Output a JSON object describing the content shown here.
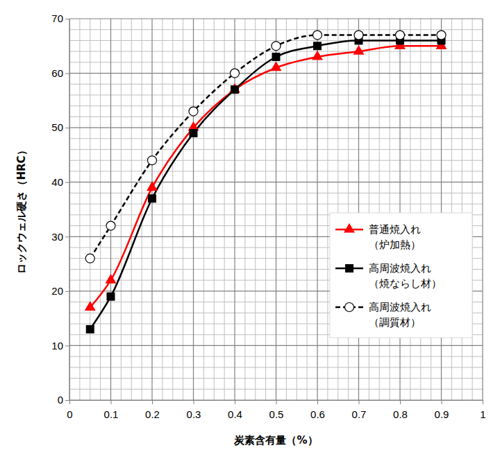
{
  "chart_data": {
    "type": "line",
    "x_label": "炭素含有量（%）",
    "y_label": "ロックウェル硬さ（HRC）",
    "x": [
      0.05,
      0.1,
      0.2,
      0.3,
      0.4,
      0.5,
      0.6,
      0.7,
      0.8,
      0.9
    ],
    "series": [
      {
        "name": "普通焼入れ（炉加熱）",
        "color": "#ff0000",
        "marker": "triangle",
        "line_style": "solid",
        "values": [
          17,
          22,
          39,
          50,
          57,
          61,
          63,
          64,
          65,
          65
        ]
      },
      {
        "name": "高周波焼入れ（焼ならし材）",
        "color": "#000000",
        "marker": "square",
        "line_style": "solid",
        "values": [
          13,
          19,
          37,
          49,
          57,
          63,
          65,
          66,
          66,
          66
        ]
      },
      {
        "name": "高周波焼入れ（調質材）",
        "color": "#000000",
        "marker": "circle-open",
        "line_style": "dashed",
        "values": [
          26,
          32,
          44,
          53,
          60,
          65,
          67,
          67,
          67,
          67
        ]
      }
    ],
    "xlim": [
      0,
      1
    ],
    "xticks": [
      0,
      0.1,
      0.2,
      0.3,
      0.4,
      0.5,
      0.6,
      0.7,
      0.8,
      0.9,
      1
    ],
    "ylim": [
      0,
      70
    ],
    "yticks": [
      0,
      10,
      20,
      30,
      40,
      50,
      60,
      70
    ],
    "grid": true,
    "legend": "right"
  }
}
